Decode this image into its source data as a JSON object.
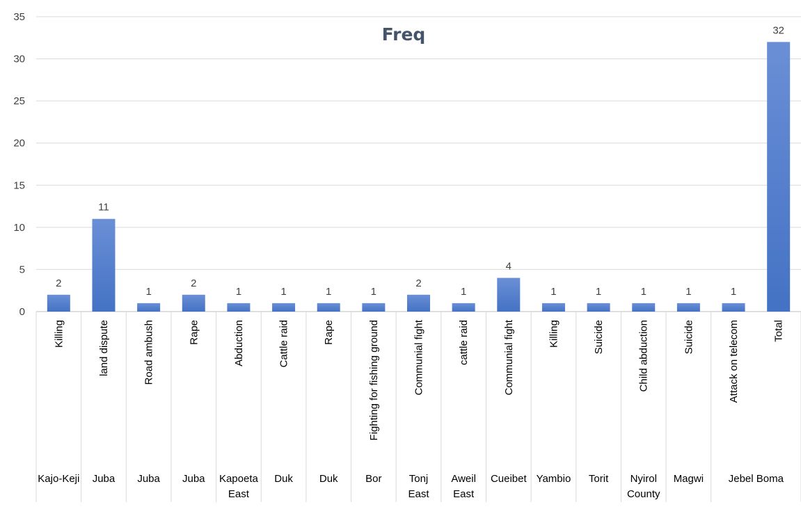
{
  "chart_data": {
    "type": "bar",
    "title": "Freq",
    "xlabel": "",
    "ylabel": "",
    "ylim": [
      0,
      35
    ],
    "yticks": [
      0,
      5,
      10,
      15,
      20,
      25,
      30,
      35
    ],
    "grid": true,
    "legend": "none",
    "bar_color": "#4472c4",
    "bar_color_light": "#6a8fd6",
    "categories": [
      {
        "label": "Killing",
        "group": "Kajo-Keji"
      },
      {
        "label": "land dispute",
        "group": "Juba"
      },
      {
        "label": "Road ambush",
        "group": "Juba"
      },
      {
        "label": "Rape",
        "group": "Juba"
      },
      {
        "label": "Abduction",
        "group": "Kapoeta East"
      },
      {
        "label": "Cattle raid",
        "group": "Duk"
      },
      {
        "label": "Rape",
        "group": "Duk"
      },
      {
        "label": "Fighting for fishing ground",
        "group": "Bor"
      },
      {
        "label": "Communial fight",
        "group": "Tonj East"
      },
      {
        "label": "cattle raid",
        "group": "Aweil East"
      },
      {
        "label": "Communial fight",
        "group": "Cueibet"
      },
      {
        "label": "Killing",
        "group": "Yambio"
      },
      {
        "label": "Suicide",
        "group": "Torit"
      },
      {
        "label": "Child abduction",
        "group": "Nyirol County"
      },
      {
        "label": "Suicide",
        "group": "Magwi"
      },
      {
        "label": "Attack on telecom",
        "group": "Jebel Boma"
      },
      {
        "label": "Total",
        "group": "Jebel Boma"
      }
    ],
    "values": [
      2,
      11,
      1,
      2,
      1,
      1,
      1,
      1,
      2,
      1,
      4,
      1,
      1,
      1,
      1,
      1,
      32
    ],
    "groups": [
      {
        "name": "Kajo-Keji",
        "lines": [
          "Kajo-Keji"
        ],
        "span": 1
      },
      {
        "name": "Juba",
        "lines": [
          "Juba"
        ],
        "span": 1
      },
      {
        "name": "Juba",
        "lines": [
          "Juba"
        ],
        "span": 1
      },
      {
        "name": "Juba",
        "lines": [
          "Juba"
        ],
        "span": 1
      },
      {
        "name": "Kapoeta East",
        "lines": [
          "Kapoeta",
          "East"
        ],
        "span": 1
      },
      {
        "name": "Duk",
        "lines": [
          "Duk"
        ],
        "span": 1
      },
      {
        "name": "Duk",
        "lines": [
          "Duk"
        ],
        "span": 1
      },
      {
        "name": "Bor",
        "lines": [
          "Bor"
        ],
        "span": 1
      },
      {
        "name": "Tonj East",
        "lines": [
          "Tonj",
          "East"
        ],
        "span": 1
      },
      {
        "name": "Aweil East",
        "lines": [
          "Aweil",
          "East"
        ],
        "span": 1
      },
      {
        "name": "Cueibet",
        "lines": [
          "Cueibet"
        ],
        "span": 1
      },
      {
        "name": "Yambio",
        "lines": [
          "Yambio"
        ],
        "span": 1
      },
      {
        "name": "Torit",
        "lines": [
          "Torit"
        ],
        "span": 1
      },
      {
        "name": "Nyirol County",
        "lines": [
          "Nyirol",
          "County"
        ],
        "span": 1
      },
      {
        "name": "Magwi",
        "lines": [
          "Magwi"
        ],
        "span": 1
      },
      {
        "name": "Jebel Boma",
        "lines": [
          "Jebel Boma"
        ],
        "span": 2
      }
    ]
  }
}
